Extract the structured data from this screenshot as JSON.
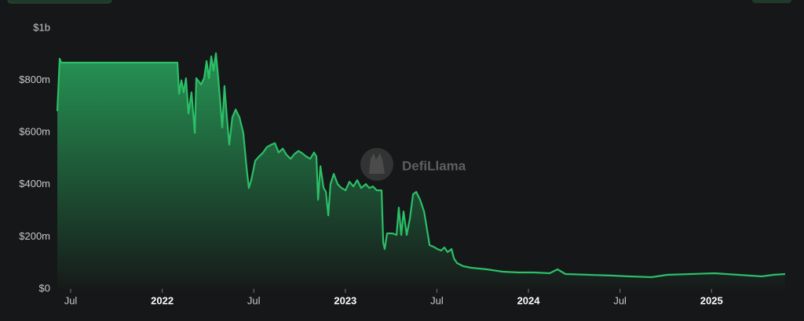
{
  "chart_data": {
    "type": "area",
    "watermark": "DefiLlama",
    "color": "#2bbf68",
    "x": [
      2021.427,
      2021.44,
      2021.449,
      2022.083,
      2022.092,
      2022.105,
      2022.117,
      2022.13,
      2022.143,
      2022.16,
      2022.178,
      2022.186,
      2022.212,
      2022.229,
      2022.242,
      2022.255,
      2022.268,
      2022.28,
      2022.293,
      2022.306,
      2022.328,
      2022.34,
      2022.353,
      2022.366,
      2022.383,
      2022.401,
      2022.422,
      2022.443,
      2022.461,
      2022.473,
      2022.486,
      2022.508,
      2022.529,
      2022.551,
      2022.572,
      2022.594,
      2022.615,
      2022.636,
      2022.658,
      2022.679,
      2022.701,
      2022.722,
      2022.744,
      2022.765,
      2022.786,
      2022.808,
      2022.829,
      2022.842,
      2022.851,
      2022.864,
      2022.881,
      2022.894,
      2022.907,
      2022.919,
      2022.937,
      2022.958,
      2022.979,
      2023.001,
      2023.022,
      2023.044,
      2023.065,
      2023.087,
      2023.112,
      2023.13,
      2023.151,
      2023.172,
      2023.198,
      2023.207,
      2023.215,
      2023.228,
      2023.258,
      2023.28,
      2023.292,
      2023.305,
      2023.318,
      2023.335,
      2023.352,
      2023.37,
      2023.387,
      2023.408,
      2023.43,
      2023.451,
      2023.46,
      2023.481,
      2023.503,
      2023.524,
      2023.541,
      2023.558,
      2023.58,
      2023.593,
      2023.61,
      2023.644,
      2023.687,
      2023.773,
      2023.859,
      2023.944,
      2024.03,
      2024.116,
      2024.159,
      2024.202,
      2024.33,
      2024.459,
      2024.545,
      2024.673,
      2024.759,
      2024.888,
      2025.016,
      2025.145,
      2025.274,
      2025.338,
      2025.402
    ],
    "values": [
      682,
      883,
      868,
      868,
      748,
      800,
      754,
      808,
      673,
      754,
      598,
      808,
      784,
      808,
      874,
      808,
      892,
      838,
      904,
      808,
      619,
      778,
      658,
      553,
      658,
      688,
      658,
      598,
      463,
      387,
      417,
      492,
      508,
      523,
      544,
      553,
      559,
      523,
      538,
      514,
      499,
      517,
      529,
      520,
      508,
      499,
      523,
      508,
      342,
      471,
      387,
      372,
      282,
      402,
      441,
      402,
      387,
      378,
      411,
      393,
      417,
      387,
      402,
      387,
      393,
      378,
      378,
      177,
      153,
      213,
      213,
      207,
      312,
      207,
      297,
      207,
      267,
      363,
      372,
      342,
      297,
      207,
      168,
      162,
      153,
      147,
      159,
      141,
      153,
      117,
      99,
      87,
      81,
      75,
      66,
      63,
      63,
      60,
      75,
      57,
      54,
      51,
      48,
      45,
      54,
      57,
      60,
      54,
      48,
      54,
      57
    ],
    "xlim": [
      2021.427,
      2025.402
    ],
    "xticks": [
      {
        "value": 2021.5,
        "label": "Jul"
      },
      2022,
      {
        "value": 2022.5,
        "label": "Jul"
      },
      2023,
      {
        "value": 2023.5,
        "label": "Jul"
      },
      2024,
      {
        "value": 2024.5,
        "label": "Jul"
      },
      2025
    ],
    "ylim": [
      0,
      1000
    ],
    "yticks": [
      {
        "value": 0,
        "label": "$0"
      },
      {
        "value": 200,
        "label": "$200m"
      },
      {
        "value": 400,
        "label": "$400m"
      },
      {
        "value": 600,
        "label": "$600m"
      },
      {
        "value": 800,
        "label": "$800m"
      },
      {
        "value": 1000,
        "label": "$1b"
      }
    ]
  }
}
